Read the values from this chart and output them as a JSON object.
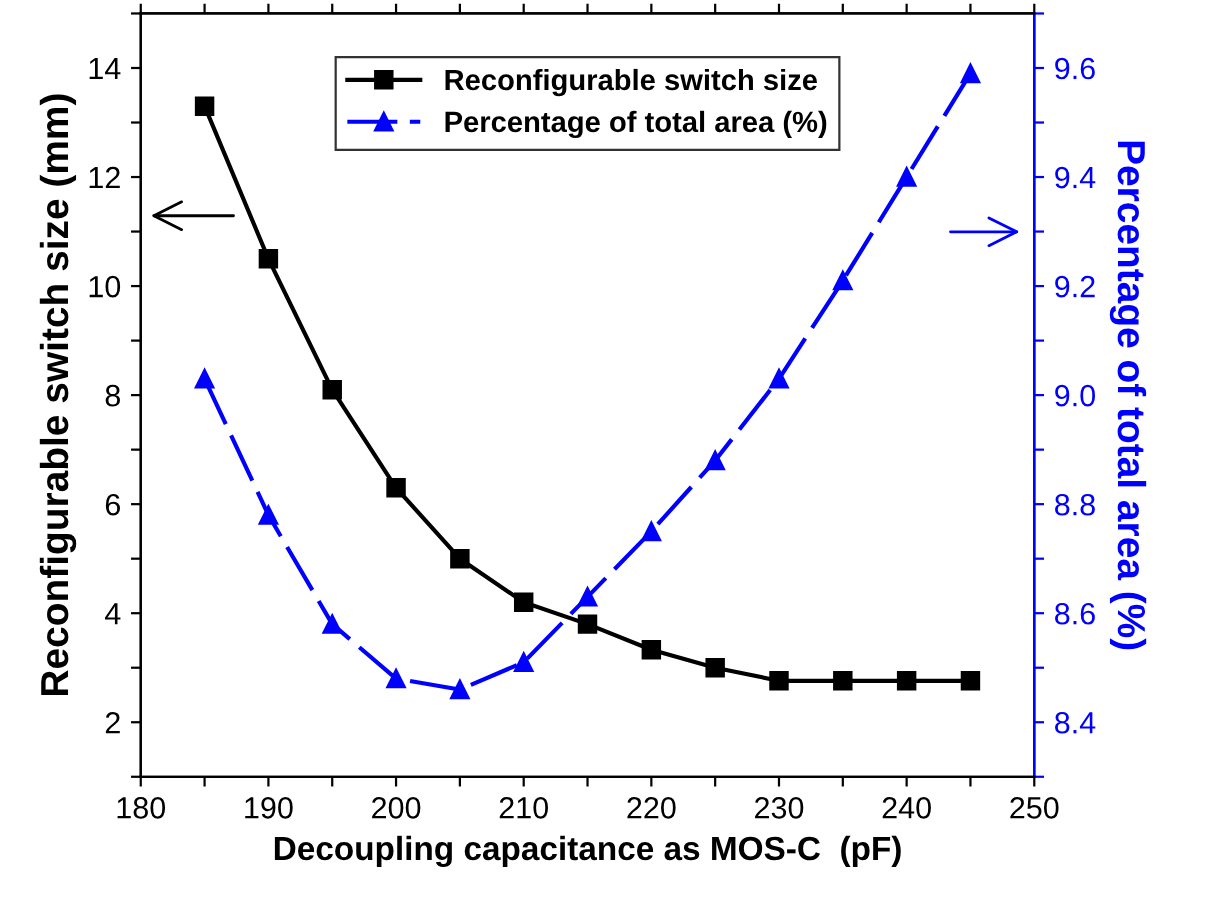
{
  "chart_data": {
    "type": "line",
    "xlabel": "Decoupling capacitance as MOS-C  (pF)",
    "ylabel": "Reconfigurable switch size (mm)",
    "y2label": "Percentage of total area (%)",
    "x": [
      185,
      190,
      195,
      200,
      205,
      210,
      215,
      220,
      225,
      230,
      235,
      240,
      245
    ],
    "series": [
      {
        "name": "Reconfigurable switch size",
        "color": "#000000",
        "marker": "square",
        "line_style": "solid",
        "values": [
          13.3,
          10.5,
          8.1,
          6.3,
          5.0,
          4.2,
          3.8,
          3.33,
          3.0,
          2.76,
          2.76,
          2.76,
          2.76
        ]
      },
      {
        "name": "Percentage of total area (%)",
        "color": "#0000ff",
        "marker": "triangle",
        "line_style": "dashed",
        "axis": "y2",
        "values": [
          9.03,
          8.78,
          8.58,
          8.48,
          8.46,
          8.51,
          8.63,
          8.75,
          8.88,
          9.03,
          9.21,
          9.4,
          9.59
        ]
      }
    ],
    "xlim": [
      180,
      250
    ],
    "xticks": [
      180,
      {
        "value": 185,
        "label": null
      },
      190,
      {
        "value": 195,
        "label": null
      },
      200,
      {
        "value": 205,
        "label": null
      },
      210,
      {
        "value": 215,
        "label": null
      },
      220,
      {
        "value": 225,
        "label": null
      },
      230,
      {
        "value": 235,
        "label": null
      },
      240,
      {
        "value": 245,
        "label": null
      },
      250
    ],
    "ylim": [
      1,
      15
    ],
    "yticks": [
      {
        "value": 1,
        "label": null
      },
      2,
      {
        "value": 3,
        "label": null
      },
      4,
      {
        "value": 5,
        "label": null
      },
      6,
      {
        "value": 7,
        "label": null
      },
      8,
      {
        "value": 9,
        "label": null
      },
      10,
      {
        "value": 11,
        "label": null
      },
      12,
      {
        "value": 13,
        "label": null
      },
      14,
      {
        "value": 15,
        "label": null
      }
    ],
    "y2lim": [
      8.3,
      9.7
    ],
    "y2ticks": [
      {
        "value": 8.3,
        "label": null
      },
      8.4,
      {
        "value": 8.5,
        "label": null
      },
      8.6,
      {
        "value": 8.7,
        "label": null
      },
      8.8,
      {
        "value": 8.9,
        "label": null
      },
      {
        "value": 9.0,
        "label": "9.0"
      },
      {
        "value": 9.1,
        "label": null
      },
      9.2,
      {
        "value": 9.3,
        "label": null
      },
      9.4,
      {
        "value": 9.5,
        "label": null
      },
      9.6,
      {
        "value": 9.7,
        "label": null
      }
    ],
    "legend": "top",
    "grid": false
  }
}
